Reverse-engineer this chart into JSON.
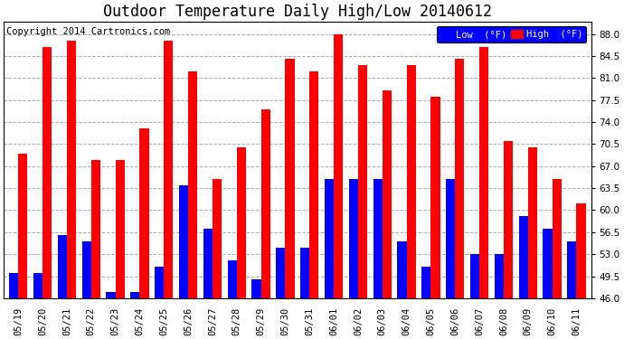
{
  "title": "Outdoor Temperature Daily High/Low 20140612",
  "copyright": "Copyright 2014 Cartronics.com",
  "legend_low": "Low  (°F)",
  "legend_high": "High  (°F)",
  "categories": [
    "05/19",
    "05/20",
    "05/21",
    "05/22",
    "05/23",
    "05/24",
    "05/25",
    "05/26",
    "05/27",
    "05/28",
    "05/29",
    "05/30",
    "05/31",
    "06/01",
    "06/02",
    "06/03",
    "06/04",
    "06/05",
    "06/06",
    "06/07",
    "06/08",
    "06/09",
    "06/10",
    "06/11"
  ],
  "highs": [
    69,
    86,
    87,
    68,
    68,
    73,
    87,
    82,
    65,
    70,
    76,
    84,
    82,
    88,
    83,
    79,
    83,
    78,
    84,
    86,
    71,
    70,
    65,
    61
  ],
  "lows": [
    50,
    50,
    56,
    55,
    47,
    47,
    51,
    64,
    57,
    52,
    49,
    54,
    54,
    65,
    65,
    65,
    55,
    51,
    65,
    53,
    53,
    59,
    57,
    55
  ],
  "bar_color_high": "#ff0000",
  "bar_color_low": "#0000ff",
  "background_color": "#ffffff",
  "grid_color": "#aaaaaa",
  "ymin": 46,
  "ymax": 90,
  "yticks": [
    46.0,
    49.5,
    53.0,
    56.5,
    60.0,
    63.5,
    67.0,
    70.5,
    74.0,
    77.5,
    81.0,
    84.5,
    88.0
  ],
  "title_fontsize": 12,
  "copyright_fontsize": 7.5,
  "tick_fontsize": 7.5,
  "bar_width": 0.38
}
